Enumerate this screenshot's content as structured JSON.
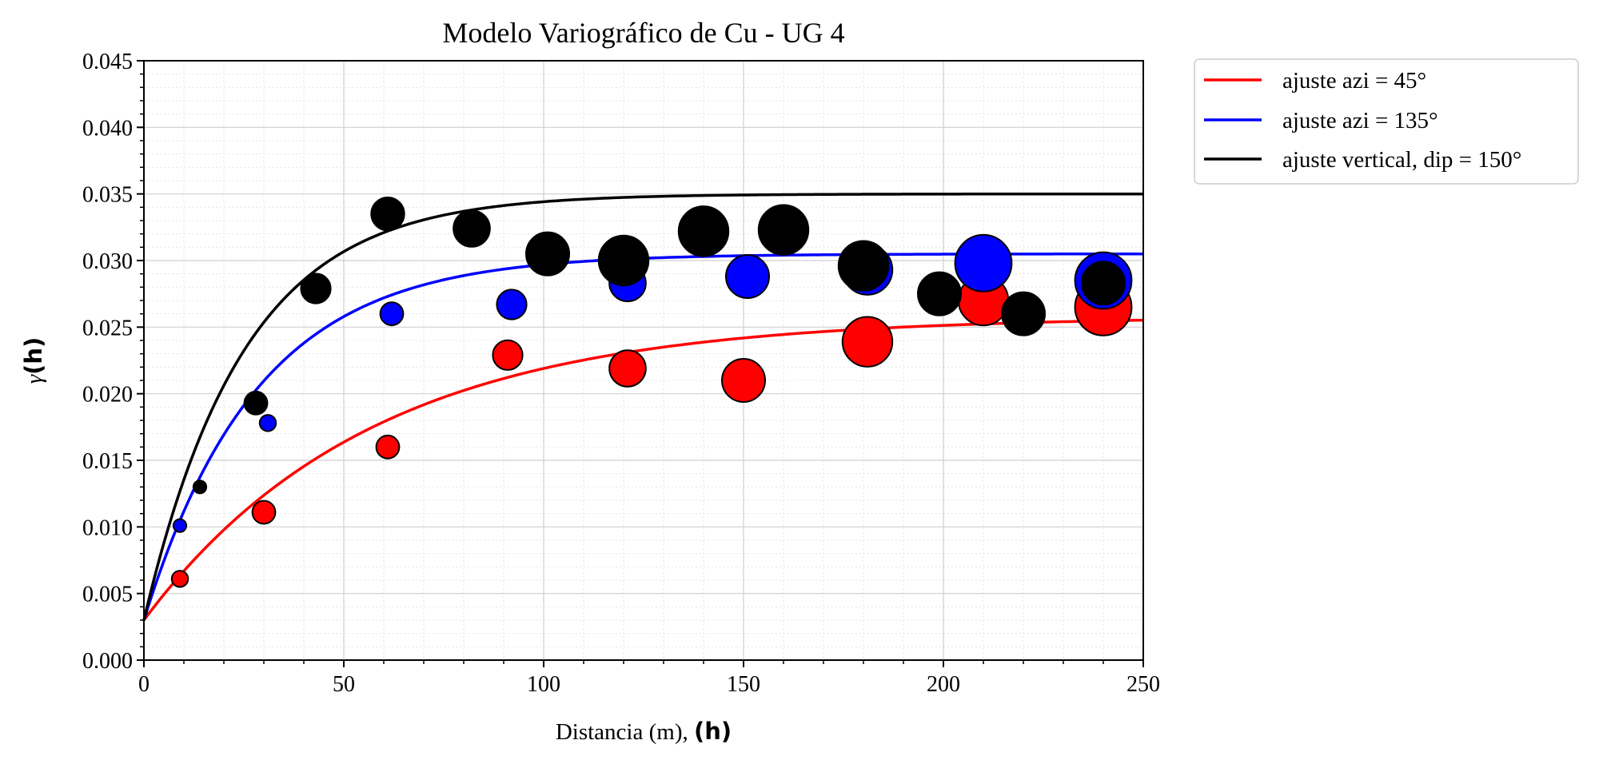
{
  "chart_data": {
    "type": "scatter",
    "title": "Modelo Variográfico de Cu - UG 4",
    "xlabel": "Distancia (m), ",
    "xlabel_bold": "(h)",
    "ylabel_greek": "γ",
    "ylabel_bold": "(h)",
    "xlim": [
      0,
      250
    ],
    "ylim": [
      0,
      0.045
    ],
    "x_ticks": [
      "0",
      "50",
      "100",
      "150",
      "200",
      "250"
    ],
    "y_ticks": [
      "0.000",
      "0.005",
      "0.010",
      "0.015",
      "0.020",
      "0.025",
      "0.030",
      "0.035",
      "0.040",
      "0.045"
    ],
    "grid": true,
    "minor_grid": true,
    "legend_position": "outside-top-right",
    "legend": [
      {
        "label": "ajuste azi = 45°",
        "color": "#ff0000"
      },
      {
        "label": "ajuste azi = 135°",
        "color": "#0000ff"
      },
      {
        "label": "ajuste vertical, dip = 150°",
        "color": "#000000"
      }
    ],
    "fit_curves": [
      {
        "color": "#ff0000",
        "nugget": 0.003,
        "sill": 0.0258,
        "range": 170
      },
      {
        "color": "#0000ff",
        "nugget": 0.003,
        "sill": 0.0305,
        "range": 85
      },
      {
        "color": "#000000",
        "nugget": 0.003,
        "sill": 0.035,
        "range": 75
      }
    ],
    "series": [
      {
        "color": "#ff0000",
        "points": [
          {
            "x": 9,
            "y": 0.0061,
            "weight": 1
          },
          {
            "x": 30,
            "y": 0.0111,
            "weight": 2
          },
          {
            "x": 61,
            "y": 0.016,
            "weight": 2
          },
          {
            "x": 91,
            "y": 0.0229,
            "weight": 3
          },
          {
            "x": 121,
            "y": 0.0219,
            "weight": 4
          },
          {
            "x": 150,
            "y": 0.021,
            "weight": 5
          },
          {
            "x": 181,
            "y": 0.0239,
            "weight": 6
          },
          {
            "x": 210,
            "y": 0.027,
            "weight": 6
          },
          {
            "x": 240,
            "y": 0.0265,
            "weight": 7
          }
        ]
      },
      {
        "color": "#0000ff",
        "points": [
          {
            "x": 9,
            "y": 0.0101,
            "weight": 0.5
          },
          {
            "x": 31,
            "y": 0.0178,
            "weight": 1
          },
          {
            "x": 62,
            "y": 0.026,
            "weight": 2
          },
          {
            "x": 92,
            "y": 0.0267,
            "weight": 3
          },
          {
            "x": 121,
            "y": 0.0283,
            "weight": 4
          },
          {
            "x": 151,
            "y": 0.0288,
            "weight": 5
          },
          {
            "x": 181,
            "y": 0.0293,
            "weight": 6
          },
          {
            "x": 210,
            "y": 0.0298,
            "weight": 7
          },
          {
            "x": 240,
            "y": 0.0285,
            "weight": 7
          }
        ]
      },
      {
        "color": "#000000",
        "points": [
          {
            "x": 14,
            "y": 0.013,
            "weight": 0.5
          },
          {
            "x": 28,
            "y": 0.0193,
            "weight": 2
          },
          {
            "x": 43,
            "y": 0.0279,
            "weight": 3
          },
          {
            "x": 61,
            "y": 0.0335,
            "weight": 3.5
          },
          {
            "x": 82,
            "y": 0.0324,
            "weight": 4
          },
          {
            "x": 101,
            "y": 0.0305,
            "weight": 5
          },
          {
            "x": 120,
            "y": 0.03,
            "weight": 6
          },
          {
            "x": 140,
            "y": 0.0322,
            "weight": 6
          },
          {
            "x": 160,
            "y": 0.0323,
            "weight": 6
          },
          {
            "x": 180,
            "y": 0.0296,
            "weight": 6
          },
          {
            "x": 199,
            "y": 0.0275,
            "weight": 5
          },
          {
            "x": 220,
            "y": 0.026,
            "weight": 5
          },
          {
            "x": 240,
            "y": 0.0283,
            "weight": 5
          }
        ]
      }
    ]
  }
}
